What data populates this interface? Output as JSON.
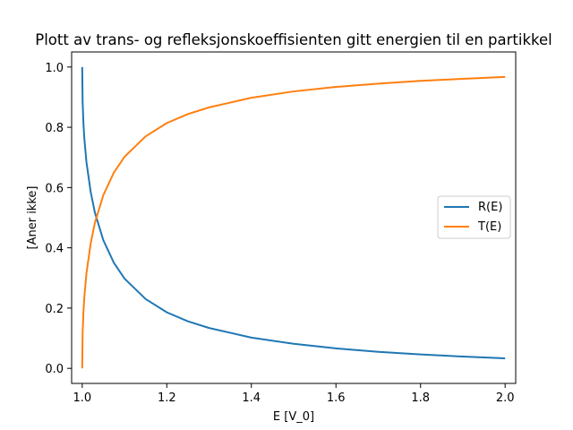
{
  "chart_data": {
    "type": "line",
    "title": "Plott av trans- og refleksjonskoeffisienten gitt energien til en partikkel",
    "xlabel": "E [V_0]",
    "ylabel": "[Aner ikke]",
    "xlim": [
      0.975,
      2.025
    ],
    "ylim": [
      -0.05,
      1.05
    ],
    "x_ticks": [
      1.0,
      1.2,
      1.4,
      1.6,
      1.8,
      2.0
    ],
    "x_tick_labels": [
      "1.0",
      "1.2",
      "1.4",
      "1.6",
      "1.8",
      "2.0"
    ],
    "y_ticks": [
      0.0,
      0.2,
      0.4,
      0.6,
      0.8,
      1.0
    ],
    "y_tick_labels": [
      "0.0",
      "0.2",
      "0.4",
      "0.6",
      "0.8",
      "1.0"
    ],
    "grid": false,
    "legend_position": "center-right",
    "series": [
      {
        "name": "R(E)",
        "color": "#1f77b4",
        "x": [
          1.0,
          1.001,
          1.003,
          1.005,
          1.01,
          1.02,
          1.03,
          1.05,
          1.075,
          1.1,
          1.15,
          1.2,
          1.25,
          1.3,
          1.4,
          1.5,
          1.6,
          1.7,
          1.8,
          1.9,
          2.0
        ],
        "values": [
          1.0,
          0.885,
          0.811,
          0.764,
          0.685,
          0.586,
          0.517,
          0.425,
          0.35,
          0.298,
          0.23,
          0.186,
          0.156,
          0.134,
          0.102,
          0.0814,
          0.0662,
          0.0549,
          0.0461,
          0.0391,
          0.0334
        ]
      },
      {
        "name": "T(E)",
        "color": "#ff7f0e",
        "x": [
          1.0,
          1.001,
          1.003,
          1.005,
          1.01,
          1.02,
          1.03,
          1.05,
          1.075,
          1.1,
          1.15,
          1.2,
          1.25,
          1.3,
          1.4,
          1.5,
          1.6,
          1.7,
          1.8,
          1.9,
          2.0
        ],
        "values": [
          0.0,
          0.115,
          0.189,
          0.236,
          0.315,
          0.414,
          0.483,
          0.575,
          0.65,
          0.702,
          0.77,
          0.814,
          0.844,
          0.866,
          0.898,
          0.919,
          0.934,
          0.945,
          0.954,
          0.961,
          0.967
        ]
      }
    ]
  }
}
